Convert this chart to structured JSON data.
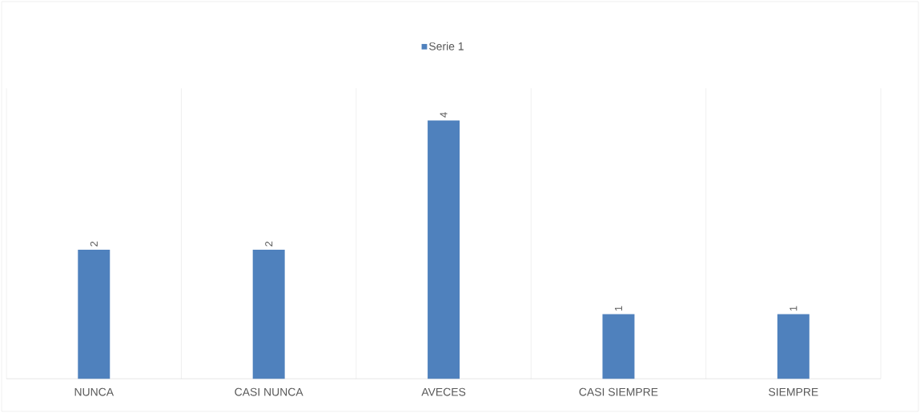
{
  "chart_data": {
    "type": "bar",
    "categories": [
      "NUNCA",
      "CASI NUNCA",
      "AVECES",
      "CASI SIEMPRE",
      "SIEMPRE"
    ],
    "series": [
      {
        "name": "Serie 1",
        "color": "#4f81bd",
        "values": [
          2,
          2,
          4,
          1,
          1
        ]
      }
    ],
    "data_labels": true,
    "grid": "x",
    "legend": "top"
  }
}
